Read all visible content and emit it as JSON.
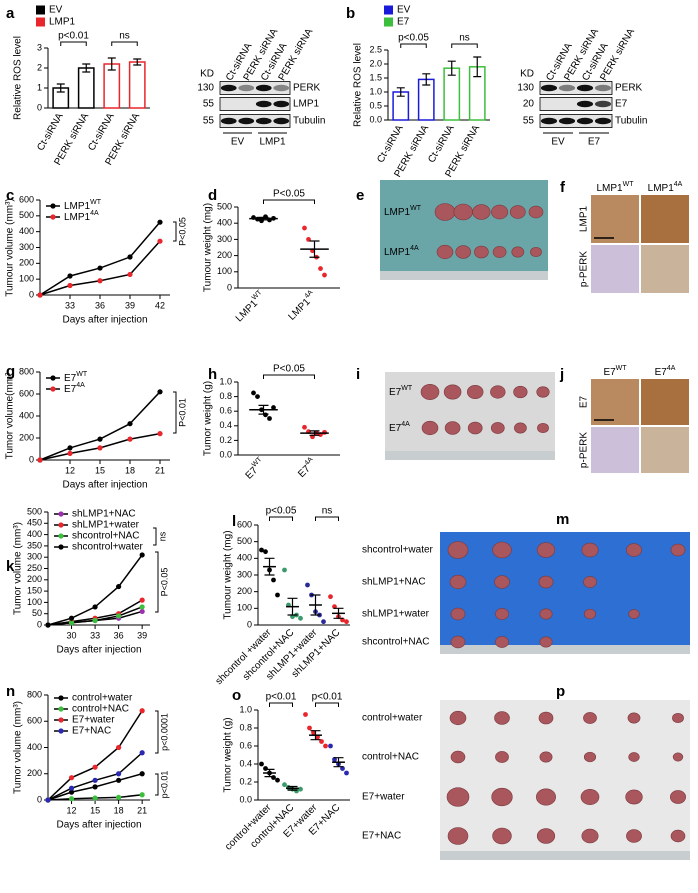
{
  "chart_data": [
    {
      "type": "bar",
      "panel": "a",
      "ylabel": "Relative ROS level",
      "categories": [
        "Ct-siRNA",
        "PERK siRNA",
        "Ct-siRNA",
        "PERK siRNA"
      ],
      "series": [
        {
          "name": "EV",
          "color": "#000000",
          "values": [
            1.0,
            2.0,
            null,
            null
          ],
          "errors": [
            0.2,
            0.2,
            null,
            null
          ]
        },
        {
          "name": "LMP1",
          "color": "#e8262b",
          "values": [
            null,
            null,
            2.2,
            2.3
          ],
          "errors": [
            null,
            null,
            0.3,
            0.15
          ]
        }
      ],
      "ylim": [
        0,
        3
      ],
      "yticks": [
        0,
        1,
        2,
        3
      ],
      "annotations": [
        "p<0.01",
        "ns"
      ]
    },
    {
      "type": "blot",
      "kd_header": "KD",
      "kd": [
        130,
        55,
        55
      ],
      "bands": [
        "PERK",
        "LMP1",
        "Tubulin"
      ],
      "lanes": [
        "Ct-siRNA",
        "PERK siRNA",
        "Ct-siRNA",
        "PERK siRNA"
      ],
      "groups": [
        "EV",
        "LMP1"
      ]
    },
    {
      "type": "bar",
      "panel": "b",
      "ylabel": "Relative ROS level",
      "categories": [
        "Ct-siRNA",
        "PERK siRNA",
        "Ct-siRNA",
        "PERK siRNA"
      ],
      "series": [
        {
          "name": "EV",
          "color": "#1a1adb",
          "values": [
            1.0,
            1.45,
            null,
            null
          ],
          "errors": [
            0.15,
            0.2,
            null,
            null
          ]
        },
        {
          "name": "E7",
          "color": "#3cbf3c",
          "values": [
            null,
            null,
            1.85,
            1.9
          ],
          "errors": [
            null,
            null,
            0.25,
            0.35
          ]
        }
      ],
      "ylim": [
        0,
        2.5
      ],
      "yticks": [
        {
          "value": 0,
          "label": "0.0"
        },
        0.5,
        {
          "value": 1,
          "label": "1.0"
        },
        1.5,
        {
          "value": 2,
          "label": "2.0"
        },
        2.5
      ],
      "annotations": [
        "p<0.05",
        "ns"
      ]
    },
    {
      "type": "blot",
      "kd_header": "KD",
      "kd": [
        130,
        20,
        55
      ],
      "bands": [
        "PERK",
        "E7",
        "Tubulin"
      ],
      "lanes": [
        "Ct-siRNA",
        "PERK siRNA",
        "Ct-siRNA",
        "PERK siRNA"
      ],
      "groups": [
        "EV",
        "E7"
      ]
    },
    {
      "type": "line",
      "panel": "c",
      "ylabel": "Tumour volume (mm³)",
      "xlabel": "Days after injection",
      "x": [
        30,
        33,
        36,
        39,
        42
      ],
      "series": [
        {
          "name": "LMP1WT",
          "color": "#000000",
          "values": [
            0,
            120,
            170,
            240,
            460
          ]
        },
        {
          "name": "LMP14A",
          "color": "#e8262b",
          "values": [
            0,
            60,
            90,
            130,
            340
          ]
        }
      ],
      "xlim": [
        30,
        43
      ],
      "xticks": [
        33,
        36,
        39,
        42
      ],
      "ylim": [
        0,
        600
      ],
      "yticks": [
        0,
        100,
        200,
        300,
        400,
        500,
        600
      ],
      "annotations": [
        "P<0.05"
      ]
    },
    {
      "type": "dotplot",
      "panel": "d",
      "ylabel": "Tumour weight (mg)",
      "categories": [
        "LMP1WT",
        "LMP14A"
      ],
      "colors": [
        "#000000",
        "#e8262b"
      ],
      "points": [
        [
          435,
          425,
          415,
          440,
          420,
          430
        ],
        [
          370,
          300,
          230,
          190,
          120,
          80
        ]
      ],
      "values": [
        428,
        240
      ],
      "errors": [
        8,
        50
      ],
      "ylim": [
        0,
        500
      ],
      "yticks": [
        0,
        100,
        200,
        300,
        400,
        500
      ],
      "annotations": [
        "P<0.05"
      ]
    },
    {
      "type": "photo",
      "panel": "e",
      "labels": [
        "LMP1WT",
        "LMP14A"
      ]
    },
    {
      "type": "ihc",
      "panel": "f",
      "columns": [
        "LMP1WT",
        "LMP14A"
      ],
      "rows": [
        "LMP1",
        "p-PERK"
      ]
    },
    {
      "type": "line",
      "panel": "g",
      "ylabel": "Tumor volume(mm³",
      "xlabel": "Days after injection",
      "x": [
        9,
        12,
        15,
        18,
        21
      ],
      "series": [
        {
          "name": "E7WT",
          "color": "#000000",
          "values": [
            0,
            110,
            190,
            330,
            620
          ]
        },
        {
          "name": "E74A",
          "color": "#e8262b",
          "values": [
            0,
            60,
            110,
            190,
            240
          ]
        }
      ],
      "xlim": [
        9,
        22
      ],
      "xticks": [
        12,
        15,
        18,
        21
      ],
      "ylim": [
        0,
        800
      ],
      "yticks": [
        0,
        200,
        400,
        600,
        800
      ],
      "annotations": [
        "P<0.01"
      ]
    },
    {
      "type": "dotplot",
      "panel": "h",
      "ylabel": "Tumor weight (g)",
      "categories": [
        "E7WT",
        "E74A"
      ],
      "colors": [
        "#000000",
        "#e8262b"
      ],
      "points": [
        [
          0.85,
          0.8,
          0.62,
          0.55,
          0.5,
          0.65
        ],
        [
          0.38,
          0.32,
          0.25,
          0.3,
          0.28,
          0.31
        ]
      ],
      "values": [
        0.62,
        0.3
      ],
      "errors": [
        0.06,
        0.03
      ],
      "ylim": [
        0,
        1
      ],
      "yticks": [
        {
          "value": 0,
          "label": "0.0"
        },
        0.2,
        0.4,
        0.6,
        0.8,
        {
          "value": 1,
          "label": "1.0"
        }
      ],
      "annotations": [
        "P<0.05"
      ]
    },
    {
      "type": "photo",
      "panel": "i",
      "labels": [
        "E7WT",
        "E74A"
      ]
    },
    {
      "type": "ihc",
      "panel": "j",
      "columns": [
        "E7WT",
        "E74A"
      ],
      "rows": [
        "E7",
        "p-PERK"
      ]
    },
    {
      "type": "line",
      "panel": "k",
      "ylabel": "Tumor volume (mm³)",
      "xlabel": "Days after injection",
      "x": [
        27,
        30,
        33,
        36,
        39
      ],
      "series": [
        {
          "name": "shLMP1+NAC",
          "color": "#9b2fae",
          "values": [
            0,
            10,
            20,
            30,
            60
          ]
        },
        {
          "name": "shLMP1+water",
          "color": "#e8262b",
          "values": [
            0,
            15,
            30,
            50,
            110
          ]
        },
        {
          "name": "shcontrol+NAC",
          "color": "#3cbf3c",
          "values": [
            0,
            10,
            20,
            40,
            80
          ]
        },
        {
          "name": "shcontrol+water",
          "color": "#000000",
          "values": [
            0,
            30,
            80,
            170,
            310
          ]
        }
      ],
      "xlim": [
        27,
        40
      ],
      "xticks": [
        30,
        33,
        36,
        39
      ],
      "ylim": [
        0,
        500
      ],
      "yticks": [
        0,
        50,
        100,
        150,
        200,
        250,
        300,
        350,
        400,
        450,
        500
      ],
      "annotations": [
        "ns",
        "P<0.05"
      ]
    },
    {
      "type": "dotplot",
      "panel": "l",
      "ylabel": "Tumour weight (mg)",
      "categories": [
        "shcontrol +water",
        "shcontrol+NAC",
        "shLMP1+water",
        "shLMP1+NAC"
      ],
      "colors": [
        "#000000",
        "#3a9a6a",
        "#2a2a9a",
        "#e8262b"
      ],
      "points": [
        [
          450,
          440,
          330,
          270,
          180
        ],
        [
          330,
          120,
          50,
          60,
          40
        ],
        [
          240,
          180,
          80,
          60,
          20
        ],
        [
          170,
          110,
          50,
          30,
          20
        ]
      ],
      "values": [
        350,
        110,
        120,
        70
      ],
      "errors": [
        50,
        50,
        60,
        30
      ],
      "ylim": [
        0,
        600
      ],
      "yticks": [
        0,
        100,
        200,
        300,
        400,
        500,
        600
      ],
      "annotations": [
        "p<0.05",
        "ns"
      ]
    },
    {
      "type": "photo",
      "panel": "m",
      "labels": [
        "shcontrol+water",
        "shLMP1+NAC",
        "shLMP1+water",
        "shcontrol+NAC"
      ]
    },
    {
      "type": "line",
      "panel": "n",
      "ylabel": "Tumor volume (mm³)",
      "xlabel": "Days after injection",
      "x": [
        9,
        12,
        15,
        18,
        21
      ],
      "series": [
        {
          "name": "control+water",
          "color": "#000000",
          "values": [
            0,
            60,
            100,
            150,
            200
          ]
        },
        {
          "name": "control+NAC",
          "color": "#3cbf3c",
          "values": [
            0,
            10,
            15,
            20,
            40
          ]
        },
        {
          "name": "E7+water",
          "color": "#e8262b",
          "values": [
            0,
            170,
            250,
            400,
            680
          ]
        },
        {
          "name": "E7+NAC",
          "color": "#2a2ab0",
          "values": [
            0,
            90,
            150,
            200,
            360
          ]
        }
      ],
      "xlim": [
        9,
        22
      ],
      "xticks": [
        12,
        15,
        18,
        21
      ],
      "ylim": [
        0,
        800
      ],
      "yticks": [
        0,
        200,
        400,
        600,
        800
      ],
      "annotations": [
        "p<0.0001",
        "p<0.01"
      ]
    },
    {
      "type": "dotplot",
      "panel": "o",
      "ylabel": "Tumor weight (g)",
      "categories": [
        "control+water",
        "control+NAC",
        "E7+water",
        "E7+NAC"
      ],
      "colors": [
        "#000000",
        "#3a9a6a",
        "#e8262b",
        "#2a2ab0"
      ],
      "points": [
        [
          0.4,
          0.35,
          0.3,
          0.25,
          0.22
        ],
        [
          0.17,
          0.14,
          0.12,
          0.1,
          0.12
        ],
        [
          0.95,
          0.8,
          0.75,
          0.7,
          0.65,
          0.6
        ],
        [
          0.6,
          0.45,
          0.4,
          0.35,
          0.3
        ]
      ],
      "values": [
        0.3,
        0.13,
        0.72,
        0.42
      ],
      "errors": [
        0.04,
        0.02,
        0.05,
        0.05
      ],
      "ylim": [
        0,
        1
      ],
      "yticks": [
        {
          "value": 0,
          "label": "0.0"
        },
        0.2,
        0.4,
        0.6,
        0.8,
        {
          "value": 1,
          "label": "1.0"
        }
      ],
      "annotations": [
        "p<0.01",
        "p<0.01"
      ]
    },
    {
      "type": "photo",
      "panel": "p",
      "labels": [
        "control+water",
        "control+NAC",
        "E7+water",
        "E7+NAC"
      ]
    }
  ]
}
